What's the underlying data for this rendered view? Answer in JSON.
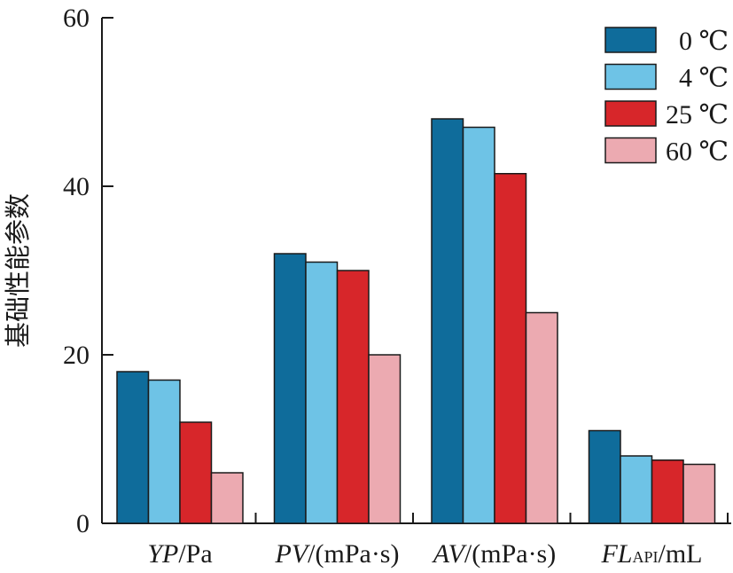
{
  "chart_data": {
    "type": "bar",
    "categories": [
      {
        "main": "YP",
        "sub": "",
        "unit": "/Pa"
      },
      {
        "main": "PV",
        "sub": "",
        "unit": "/(mPa·s)"
      },
      {
        "main": "AV",
        "sub": "",
        "unit": "/(mPa·s)"
      },
      {
        "main": "FL",
        "sub": "API",
        "unit": "/mL"
      }
    ],
    "series": [
      {
        "name": "0 ℃",
        "color": "#0f6c9b",
        "values": [
          18,
          32,
          48,
          11
        ]
      },
      {
        "name": "4 ℃",
        "color": "#6ec3e6",
        "values": [
          17,
          31,
          47,
          8
        ]
      },
      {
        "name": "25 ℃",
        "color": "#d7262a",
        "values": [
          12,
          30,
          41.5,
          7.5
        ]
      },
      {
        "name": "60 ℃",
        "color": "#ecaab1",
        "values": [
          6,
          20,
          25,
          7
        ]
      }
    ],
    "ylabel": "基础性能参数",
    "xlabel": "",
    "ylim": [
      0,
      60
    ],
    "yticks": [
      "0",
      "20",
      "40",
      "60"
    ],
    "grid": false,
    "legend_position": "top-right"
  }
}
